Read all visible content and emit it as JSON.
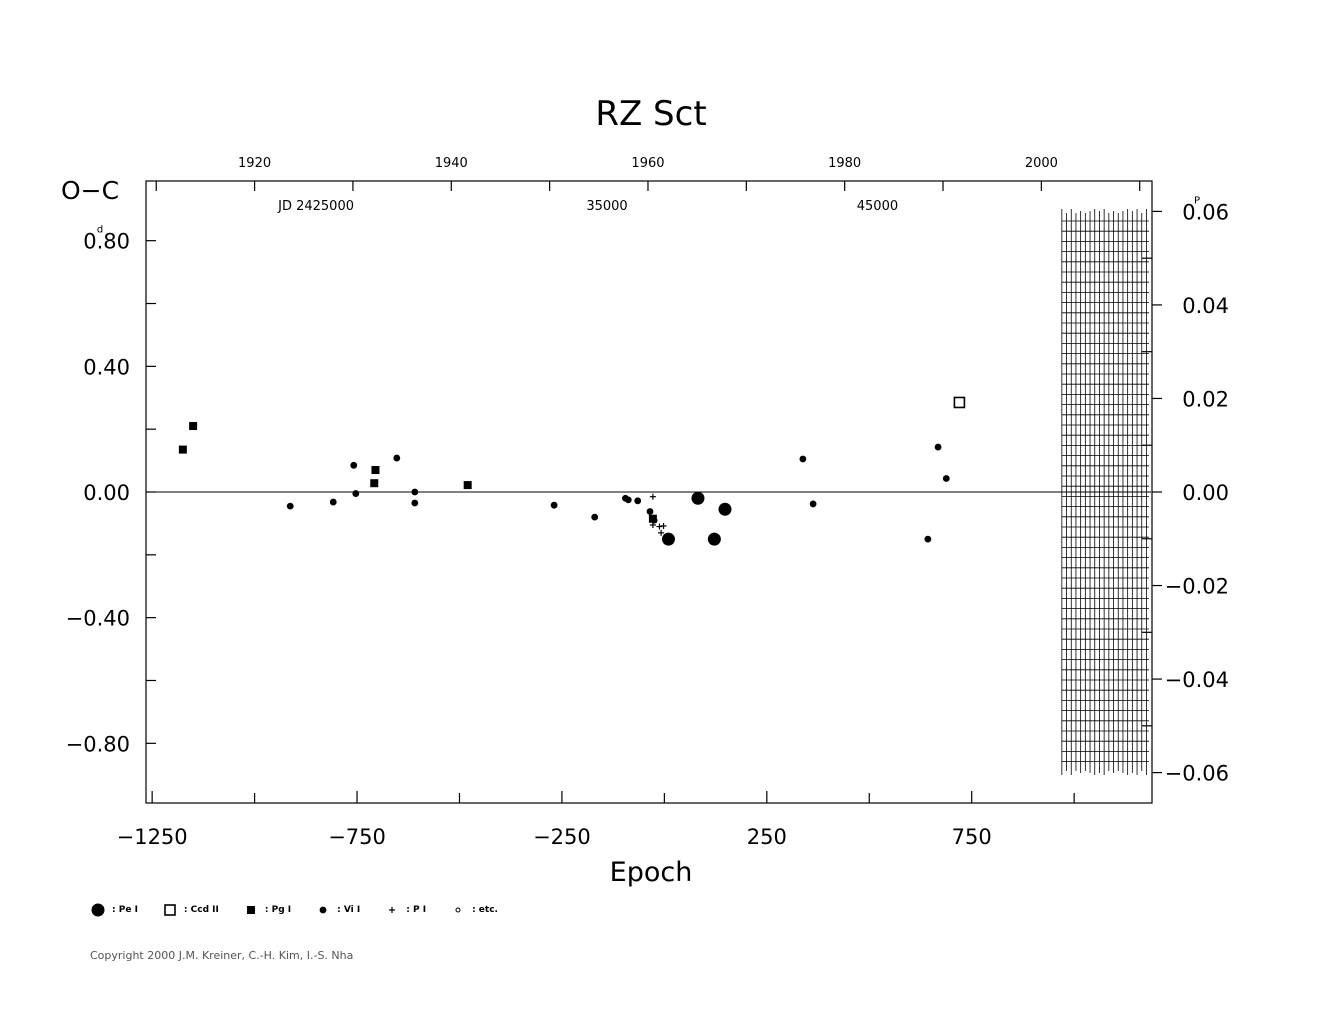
{
  "chart_data": {
    "type": "scatter",
    "title": "RZ  Sct",
    "xlabel": "Epoch",
    "ylabel_left": "O−C",
    "y_unit_left": "d",
    "y_unit_right": "P",
    "xlim": [
      -1265,
      1190
    ],
    "ylim": [
      -0.99,
      0.99
    ],
    "y2lim": [
      -0.0665,
      0.0665
    ],
    "x_ticks": [
      {
        "value": -1250,
        "label": "−1250"
      },
      {
        "value": -750,
        "label": "−750"
      },
      {
        "value": -250,
        "label": "−250"
      },
      {
        "value": 250,
        "label": "250"
      },
      {
        "value": 750,
        "label": "750"
      }
    ],
    "x_minor_ticks": [
      -1000,
      -500,
      0,
      500,
      1000
    ],
    "y_ticks": [
      {
        "value": 0.8,
        "label": "0.80"
      },
      {
        "value": 0.4,
        "label": "0.40"
      },
      {
        "value": 0.0,
        "label": "0.00"
      },
      {
        "value": -0.4,
        "label": "−0.40"
      },
      {
        "value": -0.8,
        "label": "−0.80"
      }
    ],
    "y_minor_ticks": [
      0.6,
      0.2,
      -0.2,
      -0.6
    ],
    "y2_ticks": [
      {
        "value": 0.06,
        "label": "0.06"
      },
      {
        "value": 0.04,
        "label": "0.04"
      },
      {
        "value": 0.02,
        "label": "0.02"
      },
      {
        "value": 0.0,
        "label": "0.00"
      },
      {
        "value": -0.02,
        "label": "−0.02"
      },
      {
        "value": -0.04,
        "label": "−0.04"
      },
      {
        "value": -0.06,
        "label": "−0.06"
      }
    ],
    "year_ticks": [
      {
        "value": -1000,
        "label": "1920"
      },
      {
        "value": -520,
        "label": "1940"
      },
      {
        "value": -40,
        "label": "1960"
      },
      {
        "value": 440,
        "label": "1980"
      },
      {
        "value": 920,
        "label": "2000"
      }
    ],
    "year_minor_ticks": [
      -1240,
      -760,
      -280,
      200,
      680,
      1160
    ],
    "jd_labels": [
      {
        "value": -850,
        "label": "JD  2425000"
      },
      {
        "value": -140,
        "label": "35000"
      },
      {
        "value": 520,
        "label": "45000"
      }
    ],
    "hatched_region": {
      "from": 970,
      "to": 1190
    },
    "series": [
      {
        "name": "Pe I",
        "marker": "big-dot",
        "points": [
          [
            10,
            -0.15
          ],
          [
            82,
            -0.02
          ],
          [
            122,
            -0.15
          ],
          [
            148,
            -0.055
          ]
        ]
      },
      {
        "name": "Ccd II",
        "marker": "open-square",
        "points": [
          [
            720,
            0.285
          ]
        ]
      },
      {
        "name": "Pg I",
        "marker": "filled-square",
        "points": [
          [
            -1175,
            0.135
          ],
          [
            -1150,
            0.21
          ],
          [
            -705,
            0.07
          ],
          [
            -708,
            0.028
          ],
          [
            -480,
            0.022
          ],
          [
            -28,
            -0.085
          ]
        ]
      },
      {
        "name": "Vi I",
        "marker": "dot",
        "points": [
          [
            -913,
            -0.045
          ],
          [
            -808,
            -0.032
          ],
          [
            -758,
            0.085
          ],
          [
            -753,
            -0.005
          ],
          [
            -653,
            0.108
          ],
          [
            -609,
            0.0
          ],
          [
            -609,
            -0.035
          ],
          [
            -269,
            -0.042
          ],
          [
            -170,
            -0.08
          ],
          [
            -95,
            -0.02
          ],
          [
            -88,
            -0.025
          ],
          [
            -65,
            -0.028
          ],
          [
            -35,
            -0.062
          ],
          [
            -25,
            -0.09
          ],
          [
            338,
            0.105
          ],
          [
            363,
            -0.038
          ],
          [
            643,
            -0.15
          ],
          [
            668,
            0.143
          ],
          [
            688,
            0.043
          ]
        ]
      },
      {
        "name": "P I",
        "marker": "plus",
        "points": [
          [
            -28,
            -0.015
          ],
          [
            -28,
            -0.105
          ],
          [
            -8,
            -0.13
          ],
          [
            -12,
            -0.11
          ],
          [
            -2,
            -0.108
          ]
        ]
      },
      {
        "name": "etc.",
        "marker": "small-circle",
        "points": []
      }
    ]
  },
  "legend": [
    {
      "marker": "big-dot",
      "label": ": Pe I"
    },
    {
      "marker": "open-square",
      "label": ": Ccd II"
    },
    {
      "marker": "filled-square",
      "label": ": Pg I"
    },
    {
      "marker": "dot",
      "label": ": Vi I"
    },
    {
      "marker": "plus",
      "label": ": P I"
    },
    {
      "marker": "small-circle",
      "label": ": etc."
    }
  ],
  "copyright": "Copyright 2000 J.M. Kreiner, C.-H. Kim, I.-S. Nha"
}
